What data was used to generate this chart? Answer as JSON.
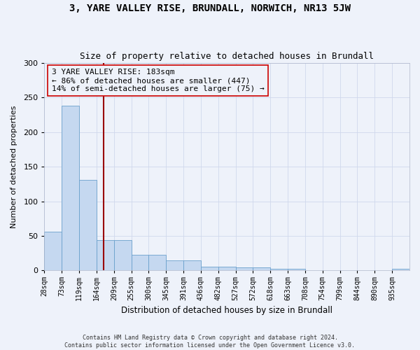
{
  "title": "3, YARE VALLEY RISE, BRUNDALL, NORWICH, NR13 5JW",
  "subtitle": "Size of property relative to detached houses in Brundall",
  "xlabel": "Distribution of detached houses by size in Brundall",
  "ylabel": "Number of detached properties",
  "bar_color": "#c5d8f0",
  "bar_edge_color": "#6aa0cc",
  "grid_color": "#d0d8ec",
  "annotation_box_color": "#cc0000",
  "property_line_color": "#990000",
  "property_value": 183,
  "annotation_text": "3 YARE VALLEY RISE: 183sqm\n← 86% of detached houses are smaller (447)\n14% of semi-detached houses are larger (75) →",
  "footer_text": "Contains HM Land Registry data © Crown copyright and database right 2024.\nContains public sector information licensed under the Open Government Licence v3.0.",
  "categories": [
    "28sqm",
    "73sqm",
    "119sqm",
    "164sqm",
    "209sqm",
    "255sqm",
    "300sqm",
    "345sqm",
    "391sqm",
    "436sqm",
    "482sqm",
    "527sqm",
    "572sqm",
    "618sqm",
    "663sqm",
    "708sqm",
    "754sqm",
    "799sqm",
    "844sqm",
    "890sqm",
    "935sqm"
  ],
  "values": [
    56,
    238,
    131,
    44,
    44,
    23,
    23,
    15,
    15,
    6,
    6,
    5,
    5,
    3,
    3,
    0,
    0,
    0,
    0,
    0,
    3
  ],
  "n_bins": 21,
  "ylim": [
    0,
    300
  ],
  "yticks": [
    0,
    50,
    100,
    150,
    200,
    250,
    300
  ],
  "background_color": "#eef2fa",
  "title_fontsize": 10,
  "subtitle_fontsize": 9,
  "annotation_fontsize": 8
}
